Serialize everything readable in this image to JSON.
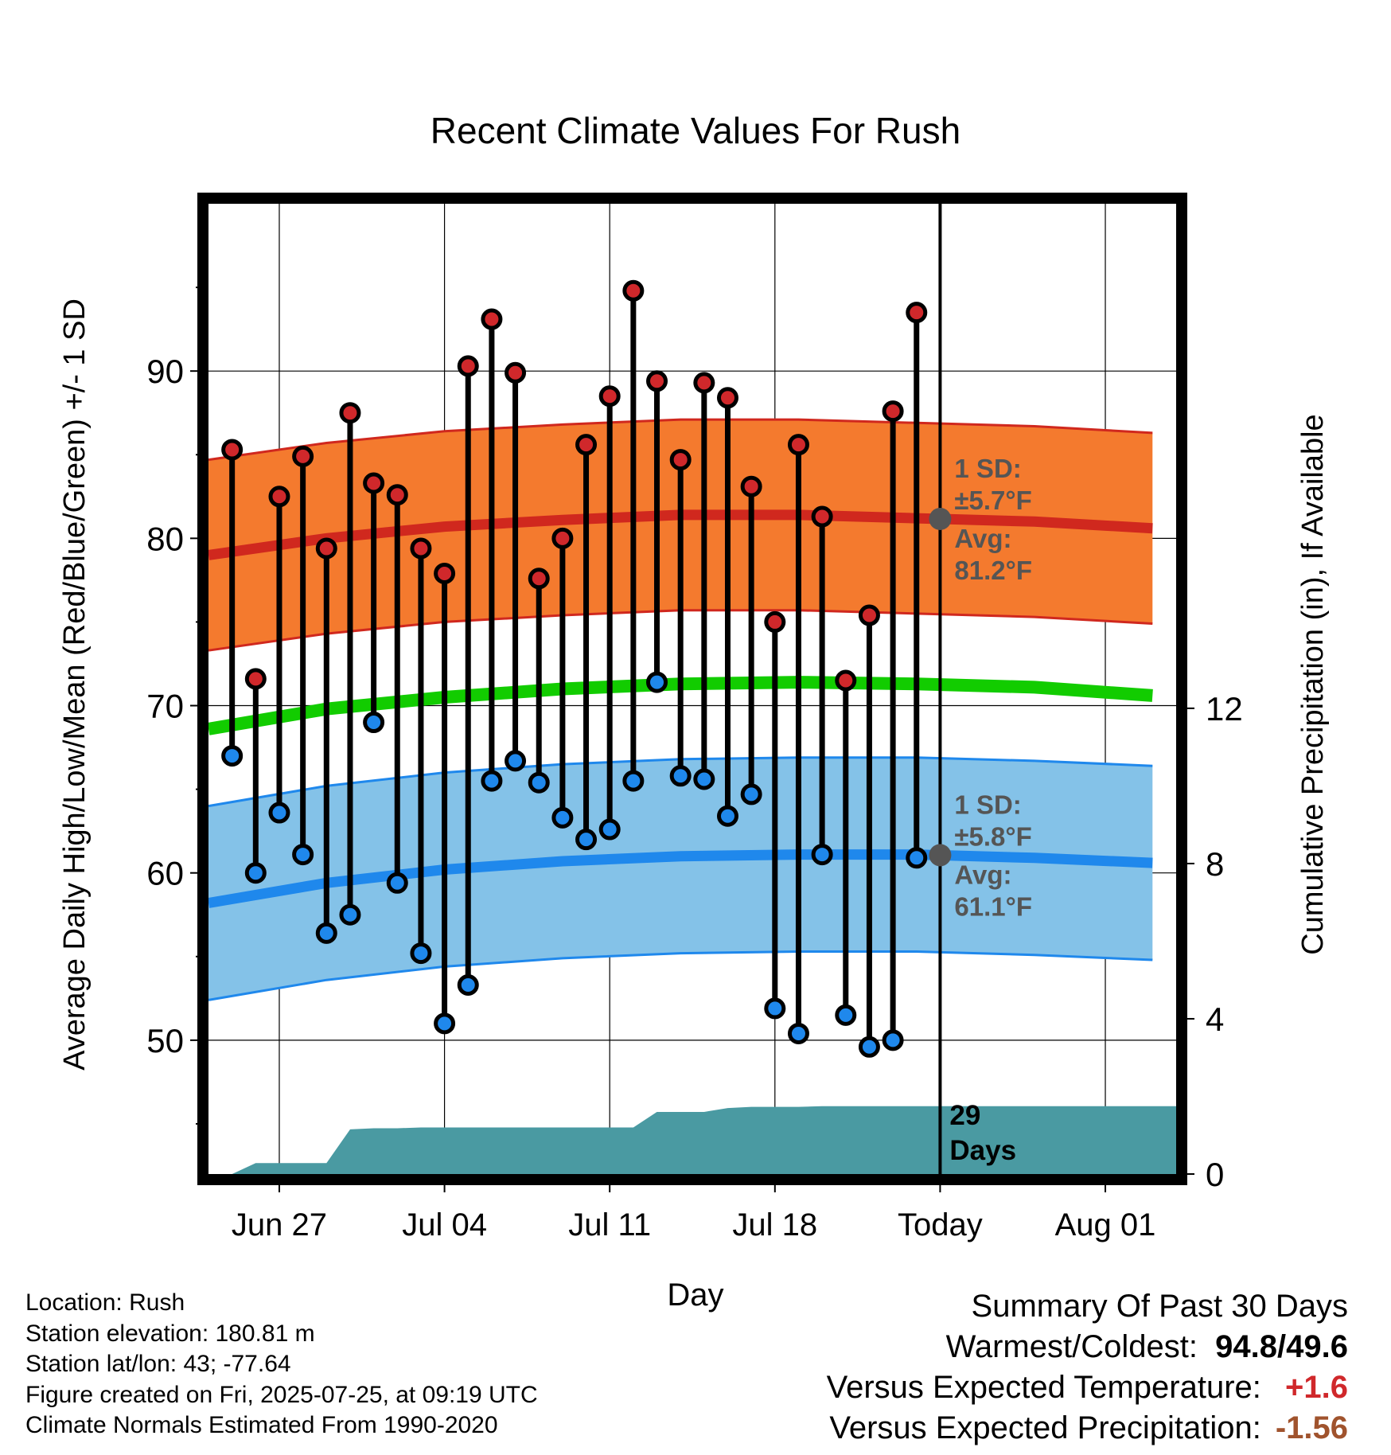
{
  "chart_data": {
    "type": "line",
    "title": "Recent Climate Values For Rush",
    "xlabel": "Day",
    "ylabel": "Average Daily High/Low/Mean (Red/Blue/Green) +/- 1 SD",
    "ylabel_right": "Cumulative Precipitation (in), If Available",
    "xlim": [
      "2025-06-24",
      "2025-08-04"
    ],
    "ylim": [
      42,
      100
    ],
    "ylim_right": [
      0,
      25
    ],
    "y_ticks": [
      50,
      60,
      70,
      80,
      90
    ],
    "y_ticks_right": [
      0,
      4,
      8,
      12
    ],
    "x_ticks": [
      {
        "date": "2025-06-27",
        "label": "Jun 27"
      },
      {
        "date": "2025-07-04",
        "label": "Jul 04"
      },
      {
        "date": "2025-07-11",
        "label": "Jul 11"
      },
      {
        "date": "2025-07-18",
        "label": "Jul 18"
      },
      {
        "date": "2025-07-25",
        "label": "Today"
      },
      {
        "date": "2025-08-01",
        "label": "Aug 01"
      }
    ],
    "grid": true,
    "today": "2025-07-25",
    "daily": {
      "dates": [
        "2025-06-25",
        "2025-06-26",
        "2025-06-27",
        "2025-06-28",
        "2025-06-29",
        "2025-06-30",
        "2025-07-01",
        "2025-07-02",
        "2025-07-03",
        "2025-07-04",
        "2025-07-05",
        "2025-07-06",
        "2025-07-07",
        "2025-07-08",
        "2025-07-09",
        "2025-07-10",
        "2025-07-11",
        "2025-07-12",
        "2025-07-13",
        "2025-07-14",
        "2025-07-15",
        "2025-07-16",
        "2025-07-17",
        "2025-07-18",
        "2025-07-19",
        "2025-07-20",
        "2025-07-21",
        "2025-07-22",
        "2025-07-23",
        "2025-07-24"
      ],
      "high": [
        85.3,
        71.6,
        82.5,
        84.9,
        79.4,
        87.5,
        83.3,
        82.6,
        79.4,
        77.9,
        90.3,
        93.1,
        89.9,
        77.6,
        80.0,
        85.6,
        88.5,
        94.8,
        89.4,
        84.7,
        89.3,
        88.4,
        83.1,
        75.0,
        85.6,
        81.3,
        71.5,
        75.4,
        87.6,
        93.5
      ],
      "low": [
        67.0,
        60.0,
        63.6,
        61.1,
        56.4,
        57.5,
        69.0,
        59.4,
        55.2,
        51.0,
        53.3,
        65.5,
        66.7,
        65.4,
        63.3,
        62.0,
        62.6,
        65.5,
        71.4,
        65.8,
        65.6,
        63.4,
        64.7,
        51.9,
        50.4,
        61.1,
        51.5,
        49.6,
        50.0,
        60.9
      ]
    },
    "normals": {
      "dates": [
        "2025-06-24",
        "2025-06-29",
        "2025-07-04",
        "2025-07-09",
        "2025-07-14",
        "2025-07-19",
        "2025-07-24",
        "2025-07-29",
        "2025-08-03"
      ],
      "high_mean": [
        79.0,
        80.0,
        80.7,
        81.1,
        81.4,
        81.4,
        81.2,
        81.0,
        80.6
      ],
      "high_sd": 5.7,
      "low_mean": [
        58.2,
        59.4,
        60.2,
        60.7,
        61.0,
        61.1,
        61.1,
        60.9,
        60.6
      ],
      "low_sd": 5.8,
      "mean": [
        68.6,
        69.8,
        70.5,
        71.0,
        71.3,
        71.4,
        71.3,
        71.1,
        70.6
      ]
    },
    "precip_cumulative": {
      "dates": [
        "2025-06-24",
        "2025-06-25",
        "2025-06-26",
        "2025-06-27",
        "2025-06-28",
        "2025-06-29",
        "2025-06-30",
        "2025-07-01",
        "2025-07-02",
        "2025-07-03",
        "2025-07-04",
        "2025-07-05",
        "2025-07-06",
        "2025-07-07",
        "2025-07-08",
        "2025-07-09",
        "2025-07-10",
        "2025-07-11",
        "2025-07-12",
        "2025-07-13",
        "2025-07-14",
        "2025-07-15",
        "2025-07-16",
        "2025-07-17",
        "2025-07-18",
        "2025-07-19",
        "2025-07-20",
        "2025-07-21",
        "2025-07-22",
        "2025-07-23",
        "2025-07-24",
        "2025-07-25",
        "2025-08-04"
      ],
      "values": [
        0,
        0,
        0.28,
        0.28,
        0.28,
        0.28,
        1.15,
        1.18,
        1.18,
        1.2,
        1.2,
        1.2,
        1.2,
        1.2,
        1.2,
        1.2,
        1.2,
        1.2,
        1.2,
        1.6,
        1.6,
        1.6,
        1.7,
        1.73,
        1.73,
        1.73,
        1.75,
        1.75,
        1.75,
        1.75,
        1.75,
        1.75,
        1.75
      ]
    },
    "annotations": {
      "high_sd_label": "1 SD:",
      "high_sd_value": "±5.7°F",
      "high_avg_label": "Avg:",
      "high_avg_value": "81.2°F",
      "low_sd_label": "1 SD:",
      "low_sd_value": "±5.8°F",
      "low_avg_label": "Avg:",
      "low_avg_value": "61.1°F",
      "days_count": "29",
      "days_word": "Days"
    },
    "colors": {
      "high_band": "#f47a2e",
      "high_line": "#d0281e",
      "low_band": "#84c2e8",
      "low_line": "#1f88ec",
      "mean_line": "#12cc00",
      "precip_fill": "#4a9aa2",
      "high_marker": "#d0282b",
      "low_marker": "#1f88ec",
      "annotation_text": "#555555",
      "today_marker": "#555555"
    }
  },
  "info": {
    "location": "Location: Rush",
    "elevation": "Station elevation: 180.81 m",
    "latlon": "Station lat/lon: 43; -77.64",
    "created": "Figure created on Fri, 2025-07-25, at 09:19 UTC",
    "normals": "Climate Normals Estimated From 1990-2020"
  },
  "summary": {
    "heading": "Summary Of Past 30 Days",
    "warm_cold_label": "Warmest/Coldest:",
    "warm_cold_value": "94.8/49.6",
    "temp_label": "Versus Expected Temperature:",
    "temp_value": "+1.6",
    "temp_color": "#d0282b",
    "precip_label": "Versus Expected Precipitation:",
    "precip_value": "-1.56",
    "precip_color": "#a0532d"
  }
}
